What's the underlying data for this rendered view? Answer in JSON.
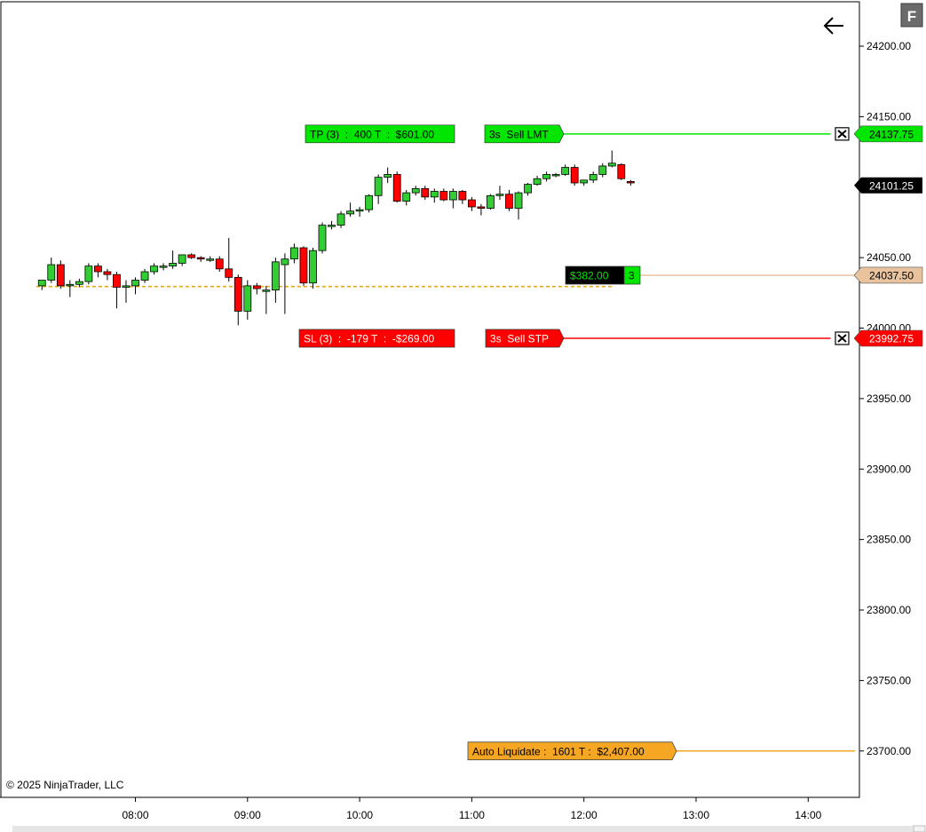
{
  "chart_data": {
    "type": "candlestick",
    "x_ticks": [
      "08:00",
      "09:00",
      "10:00",
      "11:00",
      "12:00",
      "13:00",
      "14:00"
    ],
    "y_ticks": [
      "24200.00",
      "24150.00",
      "24100.00",
      "24050.00",
      "24000.00",
      "23950.00",
      "23900.00",
      "23850.00",
      "23800.00",
      "23750.00",
      "23700.00"
    ],
    "ylim": [
      23670,
      24230
    ],
    "xlim": [
      "07:07",
      "14:25"
    ],
    "grid": false,
    "candles": [
      {
        "t": "07:10",
        "o": 24030,
        "h": 24034,
        "l": 24027,
        "c": 24034
      },
      {
        "t": "07:15",
        "o": 24034,
        "h": 24050,
        "l": 24032,
        "c": 24045
      },
      {
        "t": "07:20",
        "o": 24045,
        "h": 24048,
        "l": 24028,
        "c": 24030
      },
      {
        "t": "07:25",
        "o": 24030,
        "h": 24034,
        "l": 24022,
        "c": 24031
      },
      {
        "t": "07:30",
        "o": 24031,
        "h": 24035,
        "l": 24029,
        "c": 24033
      },
      {
        "t": "07:35",
        "o": 24033,
        "h": 24046,
        "l": 24031,
        "c": 24044
      },
      {
        "t": "07:40",
        "o": 24044,
        "h": 24046,
        "l": 24036,
        "c": 24040
      },
      {
        "t": "07:45",
        "o": 24040,
        "h": 24042,
        "l": 24034,
        "c": 24038
      },
      {
        "t": "07:50",
        "o": 24038,
        "h": 24040,
        "l": 24014,
        "c": 24029
      },
      {
        "t": "07:55",
        "o": 24029,
        "h": 24034,
        "l": 24018,
        "c": 24030
      },
      {
        "t": "08:00",
        "o": 24030,
        "h": 24036,
        "l": 24024,
        "c": 24034
      },
      {
        "t": "08:05",
        "o": 24034,
        "h": 24042,
        "l": 24032,
        "c": 24040
      },
      {
        "t": "08:10",
        "o": 24040,
        "h": 24046,
        "l": 24038,
        "c": 24044
      },
      {
        "t": "08:15",
        "o": 24044,
        "h": 24046,
        "l": 24041,
        "c": 24044
      },
      {
        "t": "08:20",
        "o": 24044,
        "h": 24055,
        "l": 24042,
        "c": 24046
      },
      {
        "t": "08:25",
        "o": 24046,
        "h": 24052,
        "l": 24044,
        "c": 24052
      },
      {
        "t": "08:30",
        "o": 24052,
        "h": 24053,
        "l": 24049,
        "c": 24050
      },
      {
        "t": "08:35",
        "o": 24050,
        "h": 24051,
        "l": 24047,
        "c": 24049
      },
      {
        "t": "08:40",
        "o": 24049,
        "h": 24051,
        "l": 24047,
        "c": 24049
      },
      {
        "t": "08:45",
        "o": 24049,
        "h": 24051,
        "l": 24040,
        "c": 24042
      },
      {
        "t": "08:50",
        "o": 24042,
        "h": 24064,
        "l": 24033,
        "c": 24036
      },
      {
        "t": "08:55",
        "o": 24036,
        "h": 24038,
        "l": 24002,
        "c": 24012
      },
      {
        "t": "09:00",
        "o": 24012,
        "h": 24034,
        "l": 24006,
        "c": 24030
      },
      {
        "t": "09:05",
        "o": 24030,
        "h": 24032,
        "l": 24024,
        "c": 24028
      },
      {
        "t": "09:10",
        "o": 24026,
        "h": 24030,
        "l": 24010,
        "c": 24027
      },
      {
        "t": "09:15",
        "o": 24027,
        "h": 24050,
        "l": 24018,
        "c": 24047
      },
      {
        "t": "09:20",
        "o": 24045,
        "h": 24053,
        "l": 24010,
        "c": 24049
      },
      {
        "t": "09:25",
        "o": 24049,
        "h": 24060,
        "l": 24046,
        "c": 24057
      },
      {
        "t": "09:30",
        "o": 24057,
        "h": 24058,
        "l": 24030,
        "c": 24032
      },
      {
        "t": "09:35",
        "o": 24032,
        "h": 24057,
        "l": 24028,
        "c": 24055
      },
      {
        "t": "09:40",
        "o": 24055,
        "h": 24075,
        "l": 24053,
        "c": 24073
      },
      {
        "t": "09:45",
        "o": 24073,
        "h": 24076,
        "l": 24070,
        "c": 24073
      },
      {
        "t": "09:50",
        "o": 24073,
        "h": 24083,
        "l": 24071,
        "c": 24081
      },
      {
        "t": "09:55",
        "o": 24081,
        "h": 24089,
        "l": 24079,
        "c": 24083
      },
      {
        "t": "10:00",
        "o": 24083,
        "h": 24086,
        "l": 24079,
        "c": 24084
      },
      {
        "t": "10:05",
        "o": 24084,
        "h": 24095,
        "l": 24082,
        "c": 24094
      },
      {
        "t": "10:10",
        "o": 24094,
        "h": 24109,
        "l": 24088,
        "c": 24107
      },
      {
        "t": "10:15",
        "o": 24107,
        "h": 24114,
        "l": 24103,
        "c": 24109
      },
      {
        "t": "10:20",
        "o": 24109,
        "h": 24111,
        "l": 24089,
        "c": 24090
      },
      {
        "t": "10:25",
        "o": 24090,
        "h": 24098,
        "l": 24087,
        "c": 24096
      },
      {
        "t": "10:30",
        "o": 24096,
        "h": 24101,
        "l": 24094,
        "c": 24099
      },
      {
        "t": "10:35",
        "o": 24099,
        "h": 24101,
        "l": 24091,
        "c": 24093
      },
      {
        "t": "10:40",
        "o": 24093,
        "h": 24099,
        "l": 24089,
        "c": 24097
      },
      {
        "t": "10:45",
        "o": 24097,
        "h": 24099,
        "l": 24090,
        "c": 24091
      },
      {
        "t": "10:50",
        "o": 24091,
        "h": 24099,
        "l": 24085,
        "c": 24097
      },
      {
        "t": "10:55",
        "o": 24097,
        "h": 24098,
        "l": 24088,
        "c": 24091
      },
      {
        "t": "11:00",
        "o": 24091,
        "h": 24093,
        "l": 24083,
        "c": 24086
      },
      {
        "t": "11:05",
        "o": 24086,
        "h": 24088,
        "l": 24080,
        "c": 24085
      },
      {
        "t": "11:10",
        "o": 24085,
        "h": 24095,
        "l": 24084,
        "c": 24094
      },
      {
        "t": "11:15",
        "o": 24094,
        "h": 24101,
        "l": 24091,
        "c": 24095
      },
      {
        "t": "11:20",
        "o": 24095,
        "h": 24098,
        "l": 24083,
        "c": 24085
      },
      {
        "t": "11:25",
        "o": 24085,
        "h": 24097,
        "l": 24077,
        "c": 24096
      },
      {
        "t": "11:30",
        "o": 24096,
        "h": 24103,
        "l": 24094,
        "c": 24102
      },
      {
        "t": "11:35",
        "o": 24102,
        "h": 24108,
        "l": 24101,
        "c": 24106
      },
      {
        "t": "11:40",
        "o": 24106,
        "h": 24111,
        "l": 24104,
        "c": 24109
      },
      {
        "t": "11:45",
        "o": 24109,
        "h": 24110,
        "l": 24107,
        "c": 24109
      },
      {
        "t": "11:50",
        "o": 24109,
        "h": 24116,
        "l": 24108,
        "c": 24114
      },
      {
        "t": "11:55",
        "o": 24114,
        "h": 24116,
        "l": 24101,
        "c": 24103
      },
      {
        "t": "12:00",
        "o": 24103,
        "h": 24105,
        "l": 24101,
        "c": 24105
      },
      {
        "t": "12:05",
        "o": 24105,
        "h": 24111,
        "l": 24103,
        "c": 24109
      },
      {
        "t": "12:10",
        "o": 24109,
        "h": 24117,
        "l": 24107,
        "c": 24115
      },
      {
        "t": "12:15",
        "o": 24115,
        "h": 24126,
        "l": 24114,
        "c": 24117
      },
      {
        "t": "12:20",
        "o": 24116,
        "h": 24117,
        "l": 24105,
        "c": 24106
      },
      {
        "t": "12:25",
        "o": 24104,
        "h": 24105,
        "l": 24101,
        "c": 24103
      }
    ],
    "price_lines": [
      {
        "name": "take-profit",
        "price": 24137.75,
        "label": "24137.75",
        "color": "#00e600",
        "text_color": "#000000",
        "line_from": "11:25",
        "line_to": "14:12",
        "tag_type": "arrow"
      },
      {
        "name": "entry",
        "price": 24037.5,
        "label": "24037.50",
        "color": "#e8c39e",
        "text_color": "#000000",
        "line_from": "11:55",
        "line_to": "14:25",
        "tag_type": "arrow"
      },
      {
        "name": "stop-loss",
        "price": 23992.75,
        "label": "23992.75",
        "color": "#ff0000",
        "text_color": "#ffffff",
        "line_from": "11:25",
        "line_to": "14:12",
        "tag_type": "arrow"
      },
      {
        "name": "auto-liquidate",
        "price": 23700,
        "label": "",
        "color": "#f5a623",
        "text_color": "#000000",
        "line_from": "11:10",
        "line_to": "14:25",
        "tag_type": "none"
      }
    ],
    "last_price": {
      "value": 24101.25,
      "label": "24101.25",
      "color": "#000000"
    },
    "avg_price_line": {
      "price": 24029.5,
      "from": "07:07",
      "to": "12:15",
      "color": "#e6a817"
    },
    "tags": {
      "tp": {
        "text": "TP (3)  :  400 T  :  $601.00",
        "color": "#00e600",
        "text_color": "#000000"
      },
      "tp_order": {
        "text": "3s  Sell LMT",
        "color": "#00e600",
        "text_color": "#000000"
      },
      "sl": {
        "text": "SL (3)  :  -179 T  :  -$269.00",
        "color": "#ff0000",
        "text_color": "#ffffff"
      },
      "sl_order": {
        "text": "3s  Sell STP",
        "color": "#ff0000",
        "text_color": "#ffffff"
      },
      "pnl": {
        "text": "$382.00",
        "color": "#000000",
        "text_color": "#00e600"
      },
      "qty": {
        "text": "3",
        "color": "#00e600",
        "text_color": "#000000"
      },
      "auto_liq": {
        "text": "Auto Liquidate :  1601 T :  $2,407.00",
        "color": "#f5a623",
        "text_color": "#000000"
      }
    },
    "copyright": "© 2025 NinjaTrader, LLC",
    "f_button": "F",
    "back_icon": "arrow-left-icon",
    "close_icon": "close-x-icon",
    "colors": {
      "up": "#32cd32",
      "down": "#ff0000",
      "wick": "#000000"
    }
  }
}
